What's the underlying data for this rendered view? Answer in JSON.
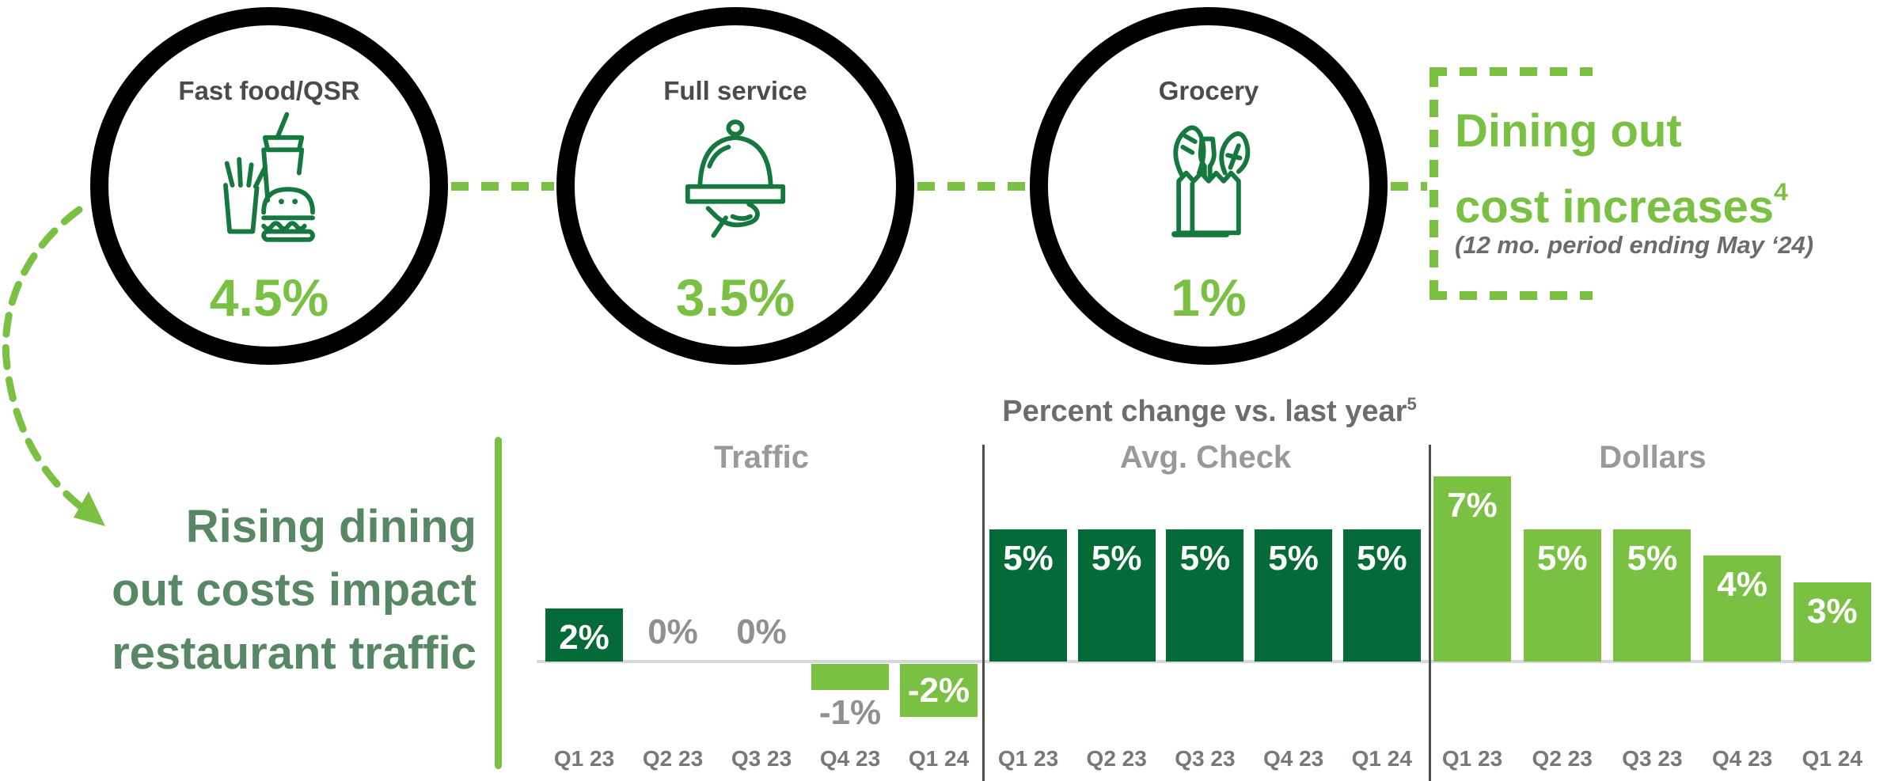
{
  "colors": {
    "light_green": "#7AC143",
    "dark_green": "#046B38",
    "icon_green": "#15793F",
    "headline_green": "#578764",
    "circle_label_gray": "#4A4B4D",
    "chart_title_gray": "#6B6C6E",
    "group_title_gray": "#97999B",
    "value_label_gray": "#8E9093",
    "baseline_gray": "#D8D8D8",
    "separator_gray": "#4D4D4D",
    "ring_black": "#000000"
  },
  "top": {
    "circles": [
      {
        "label": "Fast food/QSR",
        "value": "4.5%",
        "icon": "fast-food-icon"
      },
      {
        "label": "Full service",
        "value": "3.5%",
        "icon": "serving-tray-icon"
      },
      {
        "label": "Grocery",
        "value": "1%",
        "icon": "grocery-bag-icon"
      }
    ],
    "callout": {
      "line1": "Dining out",
      "line2": "cost increases",
      "superscript": "4",
      "note": "(12 mo. period ending May ‘24)"
    }
  },
  "headline": {
    "line1": "Rising dining",
    "line2": "out costs impact",
    "line3": "restaurant traffic"
  },
  "chart_data": {
    "type": "bar",
    "title": "Percent change vs. last year",
    "title_superscript": "5",
    "unit": "percent",
    "categories": [
      "Q1 23",
      "Q2 23",
      "Q3 23",
      "Q4 23",
      "Q1 24"
    ],
    "groups": [
      {
        "name": "Traffic",
        "values": [
          2,
          0,
          0,
          -1,
          -2
        ],
        "bar_labels": [
          "2%",
          "0%",
          "0%",
          "-1%",
          "-2%"
        ],
        "bar_colors": [
          "#046B38",
          null,
          null,
          "#7AC143",
          "#7AC143"
        ],
        "label_styles": [
          "inside-white",
          "above-gray",
          "above-gray",
          "below-gray",
          "inside-white"
        ]
      },
      {
        "name": "Avg. Check",
        "values": [
          5,
          5,
          5,
          5,
          5
        ],
        "bar_labels": [
          "5%",
          "5%",
          "5%",
          "5%",
          "5%"
        ],
        "bar_colors": [
          "#046B38",
          "#046B38",
          "#046B38",
          "#046B38",
          "#046B38"
        ],
        "label_styles": [
          "inside-white",
          "inside-white",
          "inside-white",
          "inside-white",
          "inside-white"
        ]
      },
      {
        "name": "Dollars",
        "values": [
          7,
          5,
          5,
          4,
          3
        ],
        "bar_labels": [
          "7%",
          "5%",
          "5%",
          "4%",
          "3%"
        ],
        "bar_colors": [
          "#7AC143",
          "#7AC143",
          "#7AC143",
          "#7AC143",
          "#7AC143"
        ],
        "label_styles": [
          "inside-white",
          "inside-white",
          "inside-white",
          "inside-white",
          "inside-white"
        ]
      }
    ],
    "baseline": 0,
    "ylim": [
      -2,
      7
    ],
    "grid": false,
    "legend": false
  }
}
